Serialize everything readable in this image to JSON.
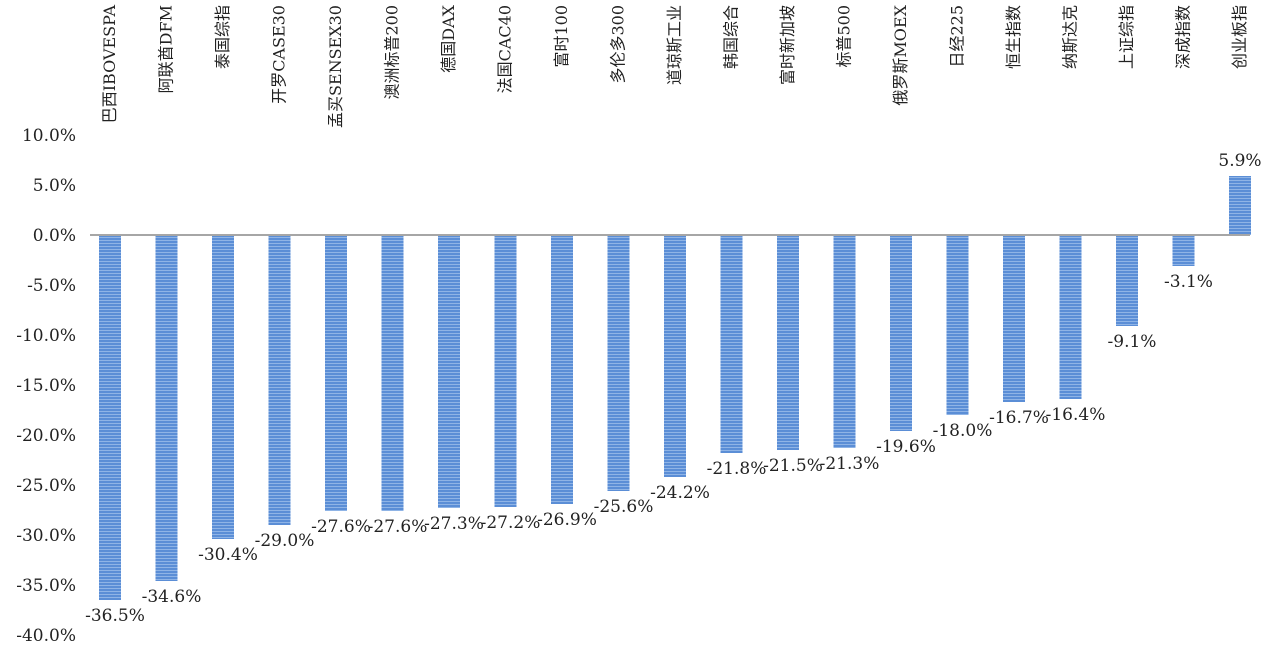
{
  "chart_data": {
    "type": "bar",
    "title": "",
    "xlabel": "",
    "ylabel": "",
    "categories": [
      "巴西IBOVESPA",
      "阿联酋DFM",
      "泰国综指",
      "开罗CASE30",
      "孟买SENSEX30",
      "澳洲标普200",
      "德国DAX",
      "法国CAC40",
      "富时100",
      "多伦多300",
      "道琼斯工业",
      "韩国综合",
      "富时新加坡",
      "标普500",
      "俄罗斯MOEX",
      "日经225",
      "恒生指数",
      "纳斯达克",
      "上证综指",
      "深成指数",
      "创业板指"
    ],
    "values": [
      -36.5,
      -34.6,
      -30.4,
      -29.0,
      -27.6,
      -27.6,
      -27.3,
      -27.2,
      -26.9,
      -25.6,
      -24.2,
      -21.8,
      -21.5,
      -21.3,
      -19.6,
      -18.0,
      -16.7,
      -16.4,
      -9.1,
      -3.1,
      5.9
    ],
    "data_labels": [
      "-36.5%",
      "-34.6%",
      "-30.4%",
      "-29.0%",
      "-27.6%",
      "-27.6%",
      "-27.3%",
      "-27.2%",
      "-26.9%",
      "-25.6%",
      "-24.2%",
      "-21.8%",
      "-21.5%",
      "-21.3%",
      "-19.6%",
      "-18.0%",
      "-16.7%",
      "-16.4%",
      "-9.1%",
      "-3.1%",
      "5.9%"
    ],
    "ylim": [
      -40,
      10
    ],
    "yticks": [
      10,
      5,
      0,
      -5,
      -10,
      -15,
      -20,
      -25,
      -30,
      -35,
      -40
    ],
    "ytick_labels": [
      "10.0%",
      "5.0%",
      "0.0%",
      "-5.0%",
      "-10.0%",
      "-15.0%",
      "-20.0%",
      "-25.0%",
      "-30.0%",
      "-35.0%",
      "-40.0%"
    ],
    "grid": false,
    "legend": "none",
    "category_label_position": "top",
    "colors": {
      "bar": "#5b8ed6",
      "bar_stripe": "#8fb4e6",
      "zero_axis": "#a6a6a6"
    }
  }
}
